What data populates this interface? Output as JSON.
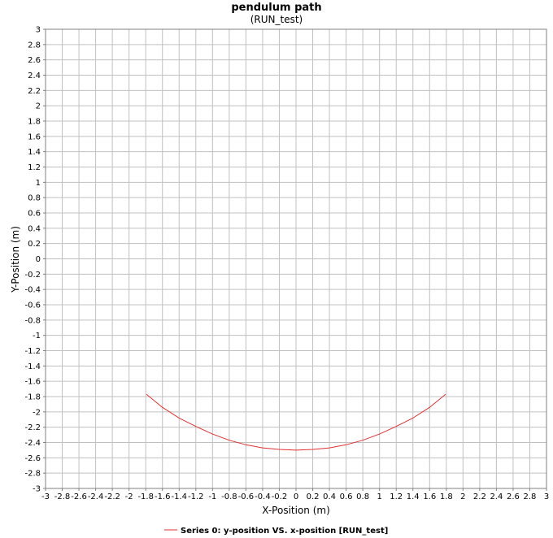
{
  "chart_data": {
    "type": "line",
    "title": "pendulum path",
    "subtitle": "(RUN_test)",
    "xlabel": "X-Position (m)",
    "ylabel": "Y-Position (m)",
    "xlim": [
      -3,
      3
    ],
    "ylim": [
      -3,
      3
    ],
    "xtick_step": 0.2,
    "ytick_step": 0.2,
    "xticks": [
      "-3",
      "-2.8",
      "-2.6",
      "-2.4",
      "-2.2",
      "-2",
      "-1.8",
      "-1.6",
      "-1.4",
      "-1.2",
      "-1",
      "-0.8",
      "-0.6",
      "-0.4",
      "-0.2",
      "0",
      "0.2",
      "0.4",
      "0.6",
      "0.8",
      "1",
      "1.2",
      "1.4",
      "1.6",
      "1.8",
      "2",
      "2.2",
      "2.4",
      "2.6",
      "2.8",
      "3"
    ],
    "yticks": [
      "3",
      "2.8",
      "2.6",
      "2.4",
      "2.2",
      "2",
      "1.8",
      "1.6",
      "1.4",
      "1.2",
      "1",
      "0.8",
      "0.6",
      "0.4",
      "0.2",
      "0",
      "-0.2",
      "-0.4",
      "-0.6",
      "-0.8",
      "-1",
      "-1.2",
      "-1.4",
      "-1.6",
      "-1.8",
      "-2",
      "-2.2",
      "-2.4",
      "-2.6",
      "-2.8",
      "-3"
    ],
    "grid": true,
    "legend_position": "bottom",
    "series": [
      {
        "name": "Series 0: y-position VS. x-position [RUN_test]",
        "color": "#e03030",
        "x": [
          -1.79,
          -1.6,
          -1.4,
          -1.2,
          -1.0,
          -0.8,
          -0.6,
          -0.4,
          -0.2,
          0.0,
          0.2,
          0.4,
          0.6,
          0.8,
          1.0,
          1.2,
          1.4,
          1.6,
          1.79
        ],
        "y": [
          -1.77,
          -1.94,
          -2.08,
          -2.19,
          -2.29,
          -2.37,
          -2.43,
          -2.47,
          -2.49,
          -2.5,
          -2.49,
          -2.47,
          -2.43,
          -2.37,
          -2.29,
          -2.19,
          -2.08,
          -1.94,
          -1.77
        ]
      }
    ]
  }
}
